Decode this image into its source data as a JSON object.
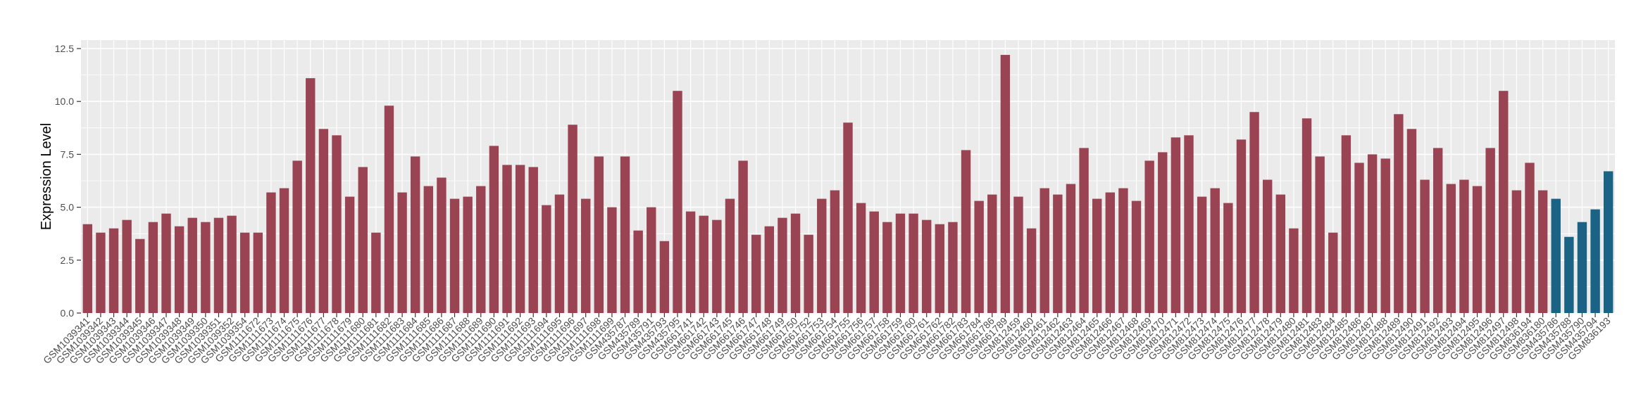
{
  "chart_data": {
    "type": "bar",
    "title": "",
    "xlabel": "",
    "ylabel": "Expression Level",
    "ylim": [
      0,
      12.9
    ],
    "yticks": [
      0.0,
      2.5,
      5.0,
      7.5,
      10.0,
      12.5
    ],
    "ytick_labels": [
      "0.0",
      "2.5",
      "5.0",
      "7.5",
      "10.0",
      "12.5"
    ],
    "grid": true,
    "legend": "none",
    "colors": {
      "group_a": "#9a4352",
      "group_b": "#1a6384",
      "panel": "#ebebeb",
      "grid": "#ffffff"
    },
    "categories": [
      "GSM1039341",
      "GSM1039342",
      "GSM1039343",
      "GSM1039344",
      "GSM1039345",
      "GSM1039346",
      "GSM1039347",
      "GSM1039348",
      "GSM1039349",
      "GSM1039350",
      "GSM1039351",
      "GSM1039352",
      "GSM1039354",
      "GSM1111672",
      "GSM1111673",
      "GSM1111674",
      "GSM1111675",
      "GSM1111676",
      "GSM1111677",
      "GSM1111678",
      "GSM1111679",
      "GSM1111680",
      "GSM1111681",
      "GSM1111682",
      "GSM1111683",
      "GSM1111684",
      "GSM1111685",
      "GSM1111686",
      "GSM1111687",
      "GSM1111688",
      "GSM1111689",
      "GSM1111690",
      "GSM1111691",
      "GSM1111692",
      "GSM1111693",
      "GSM1111694",
      "GSM1111695",
      "GSM1111696",
      "GSM1111697",
      "GSM1111698",
      "GSM1111699",
      "GSM435787",
      "GSM435789",
      "GSM435791",
      "GSM435793",
      "GSM435795",
      "GSM661741",
      "GSM661742",
      "GSM661743",
      "GSM661745",
      "GSM661746",
      "GSM661747",
      "GSM661748",
      "GSM661749",
      "GSM661750",
      "GSM661752",
      "GSM661753",
      "GSM661754",
      "GSM661755",
      "GSM661756",
      "GSM661757",
      "GSM661758",
      "GSM661759",
      "GSM661760",
      "GSM661761",
      "GSM661762",
      "GSM661782",
      "GSM661783",
      "GSM661784",
      "GSM661786",
      "GSM661789",
      "GSM812459",
      "GSM812460",
      "GSM812461",
      "GSM812462",
      "GSM812463",
      "GSM812464",
      "GSM812465",
      "GSM812466",
      "GSM812467",
      "GSM812468",
      "GSM812469",
      "GSM812470",
      "GSM812471",
      "GSM812472",
      "GSM812473",
      "GSM812474",
      "GSM812475",
      "GSM812476",
      "GSM812477",
      "GSM812478",
      "GSM812479",
      "GSM812480",
      "GSM812481",
      "GSM812483",
      "GSM812484",
      "GSM812485",
      "GSM812486",
      "GSM812487",
      "GSM812488",
      "GSM812489",
      "GSM812490",
      "GSM812491",
      "GSM812492",
      "GSM812493",
      "GSM812494",
      "GSM812495",
      "GSM812496",
      "GSM812497",
      "GSM812498",
      "GSM836194",
      "GSM836180",
      "GSM435786",
      "GSM435788",
      "GSM435790",
      "GSM435794",
      "GSM836193"
    ],
    "values": [
      4.2,
      3.8,
      4.0,
      4.4,
      3.5,
      4.3,
      4.7,
      4.1,
      4.5,
      4.3,
      4.5,
      4.6,
      3.8,
      3.8,
      5.7,
      5.9,
      7.2,
      11.1,
      8.7,
      8.4,
      5.5,
      6.9,
      3.8,
      9.8,
      5.7,
      7.4,
      6.0,
      6.4,
      5.4,
      5.5,
      6.0,
      7.9,
      7.0,
      7.0,
      6.9,
      5.1,
      5.6,
      8.9,
      5.4,
      7.4,
      5.0,
      7.4,
      3.9,
      5.0,
      3.4,
      10.5,
      4.8,
      4.6,
      4.4,
      5.4,
      7.2,
      3.7,
      4.1,
      4.5,
      4.7,
      3.7,
      5.4,
      5.8,
      9.0,
      5.2,
      4.8,
      4.3,
      4.7,
      4.7,
      4.4,
      4.2,
      4.3,
      7.7,
      5.3,
      5.6,
      12.2,
      5.5,
      4.0,
      5.9,
      5.6,
      6.1,
      7.8,
      5.4,
      5.7,
      5.9,
      5.3,
      7.2,
      7.6,
      8.3,
      8.4,
      5.5,
      5.9,
      5.2,
      8.2,
      9.5,
      6.3,
      5.6,
      4.0,
      9.2,
      7.4,
      3.8,
      8.4,
      7.1,
      7.5,
      7.3,
      9.4,
      8.7,
      6.3,
      7.8,
      6.1,
      6.3,
      6.0,
      7.8,
      10.5,
      5.8,
      7.1,
      5.8,
      5.4,
      3.6,
      4.3,
      4.9,
      6.7
    ],
    "group_b_start": 112
  }
}
